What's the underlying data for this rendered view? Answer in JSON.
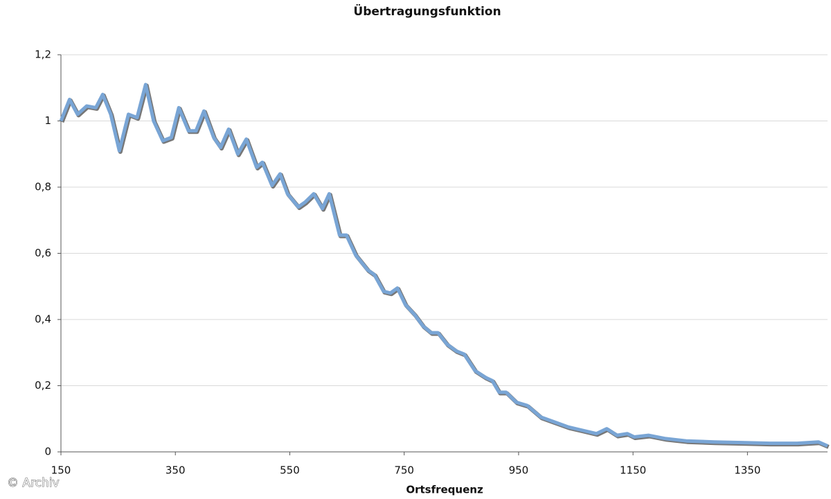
{
  "chart_data": {
    "type": "line",
    "title": "Übertragungsfunktion",
    "x_label": "Ortsfrequenz",
    "annotation": "© Archiv",
    "x": [
      150,
      165,
      179,
      195,
      211,
      223,
      237,
      252,
      268,
      283,
      298,
      312,
      328,
      343,
      356,
      373,
      386,
      400,
      417,
      429,
      443,
      459,
      474,
      492,
      502,
      519,
      533,
      546,
      565,
      577,
      592,
      607,
      619,
      637,
      649,
      665,
      686,
      698,
      714,
      726,
      738,
      752,
      768,
      783,
      797,
      809,
      825,
      841,
      855,
      874,
      892,
      904,
      916,
      928,
      946,
      965,
      989,
      1013,
      1037,
      1062,
      1086,
      1104,
      1122,
      1140,
      1152,
      1177,
      1207,
      1243,
      1292,
      1340,
      1389,
      1437,
      1474,
      1490
    ],
    "series": [
      {
        "name": "Übertragungsfunktion",
        "color": "#79a5d5",
        "values": [
          1.0,
          1.065,
          1.02,
          1.045,
          1.04,
          1.08,
          1.02,
          0.91,
          1.02,
          1.01,
          1.11,
          1.0,
          0.94,
          0.95,
          1.04,
          0.97,
          0.97,
          1.03,
          0.95,
          0.92,
          0.975,
          0.9,
          0.945,
          0.86,
          0.875,
          0.805,
          0.84,
          0.78,
          0.74,
          0.755,
          0.78,
          0.735,
          0.78,
          0.655,
          0.655,
          0.595,
          0.55,
          0.535,
          0.485,
          0.48,
          0.495,
          0.445,
          0.415,
          0.38,
          0.36,
          0.36,
          0.325,
          0.305,
          0.295,
          0.245,
          0.225,
          0.215,
          0.18,
          0.18,
          0.15,
          0.14,
          0.105,
          0.09,
          0.075,
          0.065,
          0.055,
          0.07,
          0.05,
          0.055,
          0.045,
          0.05,
          0.04,
          0.033,
          0.03,
          0.028,
          0.026,
          0.026,
          0.03,
          0.018
        ]
      }
    ],
    "xlim": [
      150,
      1490
    ],
    "xticks": [
      150,
      350,
      550,
      750,
      950,
      1150,
      1350
    ],
    "ylim": [
      0,
      1.2
    ],
    "yticks": [
      0,
      {
        "value": 0.2,
        "label": "0,2"
      },
      {
        "value": 0.4,
        "label": "0,4"
      },
      {
        "value": 0.6,
        "label": "0,6"
      },
      {
        "value": 0.8,
        "label": "0,8"
      },
      1,
      {
        "value": 1.2,
        "label": "1,2"
      }
    ],
    "grid": true
  }
}
